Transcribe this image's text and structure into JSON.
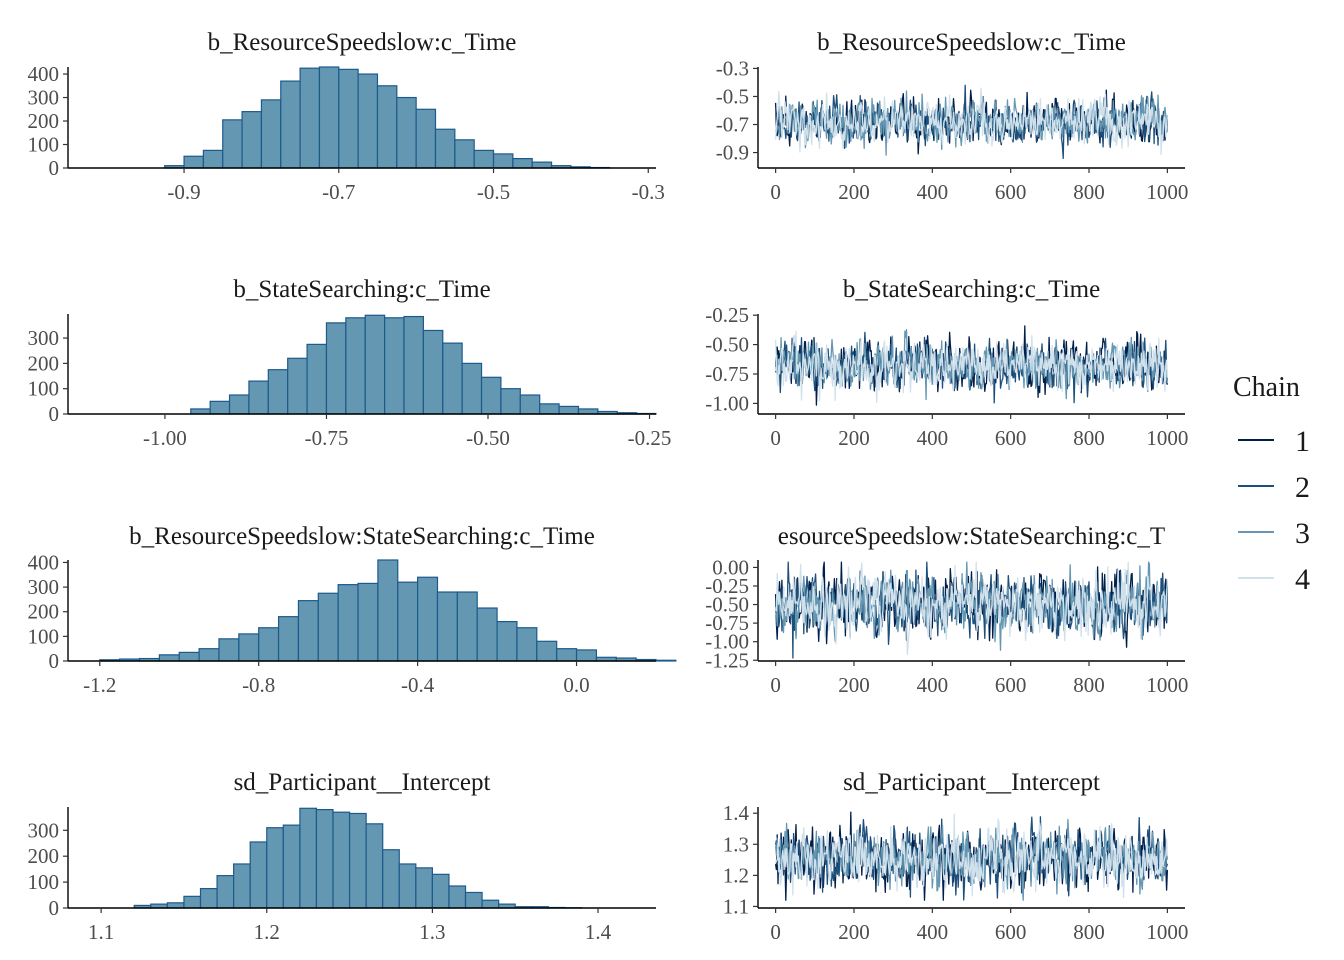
{
  "legend": {
    "title": "Chain",
    "chains": [
      {
        "label": "1",
        "color": "#011f4b"
      },
      {
        "label": "2",
        "color": "#1d4f7a"
      },
      {
        "label": "3",
        "color": "#6497b1"
      },
      {
        "label": "4",
        "color": "#d1e1ec"
      }
    ]
  },
  "colors": {
    "hist_fill": "#6497b1",
    "hist_edge": "#1d5a8c"
  },
  "chart_data": [
    {
      "type": "bar",
      "kind": "histogram",
      "title": "b_ResourceSpeedslow:c_Time",
      "xlim": [
        -1.05,
        -0.29
      ],
      "ylim": [
        0,
        430
      ],
      "xticks": [
        -0.9,
        -0.7,
        -0.5,
        -0.3
      ],
      "xtick_labels": [
        "-0.9",
        "-0.7",
        "-0.5",
        "-0.3"
      ],
      "yticks": [
        0,
        100,
        200,
        300,
        400
      ],
      "ytick_labels": [
        "0",
        "100",
        "200",
        "300",
        "400"
      ],
      "bin_start": -0.925,
      "bin_width": 0.025,
      "counts": [
        10,
        50,
        75,
        205,
        240,
        290,
        370,
        425,
        430,
        420,
        400,
        350,
        300,
        250,
        165,
        120,
        75,
        60,
        40,
        25,
        10,
        5,
        2
      ]
    },
    {
      "type": "line",
      "kind": "trace",
      "title": "b_ResourceSpeedslow:c_Time",
      "xlim": [
        -45,
        1045
      ],
      "ylim": [
        -1.01,
        -0.29
      ],
      "xticks": [
        0,
        200,
        400,
        600,
        800,
        1000
      ],
      "xtick_labels": [
        "0",
        "200",
        "400",
        "600",
        "800",
        "1000"
      ],
      "yticks": [
        -0.3,
        -0.5,
        -0.7,
        -0.9
      ],
      "ytick_labels": [
        "-0.3",
        "-0.5",
        "-0.7",
        "-0.9"
      ],
      "mean": -0.68,
      "sd": 0.075,
      "ymin": -0.99,
      "ymax": -0.33,
      "iterations": 1000,
      "series": [
        {
          "name": "1"
        },
        {
          "name": "2"
        },
        {
          "name": "3"
        },
        {
          "name": "4"
        }
      ]
    },
    {
      "type": "bar",
      "kind": "histogram",
      "title": "b_StateSearching:c_Time",
      "xlim": [
        -1.15,
        -0.24
      ],
      "ylim": [
        0,
        395
      ],
      "xticks": [
        -1.0,
        -0.75,
        -0.5,
        -0.25
      ],
      "xtick_labels": [
        "-1.00",
        "-0.75",
        "-0.50",
        "-0.25"
      ],
      "yticks": [
        0,
        100,
        200,
        300
      ],
      "ytick_labels": [
        "0",
        "100",
        "200",
        "300"
      ],
      "bin_start": -0.96,
      "bin_width": 0.03,
      "counts": [
        20,
        50,
        75,
        130,
        175,
        220,
        275,
        360,
        380,
        390,
        380,
        385,
        330,
        280,
        200,
        145,
        100,
        75,
        40,
        30,
        20,
        10,
        5,
        2
      ]
    },
    {
      "type": "line",
      "kind": "trace",
      "title": "b_StateSearching:c_Time",
      "xlim": [
        -45,
        1045
      ],
      "ylim": [
        -1.09,
        -0.24
      ],
      "xticks": [
        0,
        200,
        400,
        600,
        800,
        1000
      ],
      "xtick_labels": [
        "0",
        "200",
        "400",
        "600",
        "800",
        "1000"
      ],
      "yticks": [
        -0.25,
        -0.5,
        -0.75,
        -1.0
      ],
      "ytick_labels": [
        "-0.25",
        "-0.50",
        "-0.75",
        "-1.00"
      ],
      "mean": -0.68,
      "sd": 0.1,
      "ymin": -1.07,
      "ymax": -0.27,
      "iterations": 1000,
      "series": [
        {
          "name": "1"
        },
        {
          "name": "2"
        },
        {
          "name": "3"
        },
        {
          "name": "4"
        }
      ]
    },
    {
      "type": "bar",
      "kind": "histogram",
      "title": "b_ResourceSpeedslow:StateSearching:c_Time",
      "xlim": [
        -1.28,
        0.2
      ],
      "ylim": [
        0,
        410
      ],
      "xticks": [
        -1.2,
        -0.8,
        -0.4,
        0.0
      ],
      "xtick_labels": [
        "-1.2",
        "-0.8",
        "-0.4",
        "0.0"
      ],
      "yticks": [
        0,
        100,
        200,
        300,
        400
      ],
      "ytick_labels": [
        "0",
        "100",
        "200",
        "300",
        "400"
      ],
      "bin_start": -1.2,
      "bin_width": 0.05,
      "counts": [
        5,
        8,
        10,
        25,
        35,
        50,
        90,
        110,
        135,
        180,
        245,
        275,
        310,
        315,
        410,
        320,
        340,
        280,
        280,
        215,
        160,
        135,
        80,
        50,
        45,
        15,
        12,
        6,
        3
      ]
    },
    {
      "type": "line",
      "kind": "trace",
      "title": "b_ResourceSpeedslow:StateSearching:c_Time",
      "title_display": "esourceSpeedslow:StateSearching:c_T",
      "xlim": [
        -45,
        1045
      ],
      "ylim": [
        -1.26,
        0.1
      ],
      "xticks": [
        0,
        200,
        400,
        600,
        800,
        1000
      ],
      "xtick_labels": [
        "0",
        "200",
        "400",
        "600",
        "800",
        "1000"
      ],
      "yticks": [
        0.0,
        -0.25,
        -0.5,
        -0.75,
        -1.0,
        -1.25
      ],
      "ytick_labels": [
        "0.00",
        "-0.25",
        "-0.50",
        "-0.75",
        "-1.00",
        "-1.25"
      ],
      "mean": -0.5,
      "sd": 0.2,
      "ymin": -1.22,
      "ymax": 0.07,
      "iterations": 1000,
      "series": [
        {
          "name": "1"
        },
        {
          "name": "2"
        },
        {
          "name": "3"
        },
        {
          "name": "4"
        }
      ]
    },
    {
      "type": "bar",
      "kind": "histogram",
      "title": "sd_Participant__Intercept",
      "xlim": [
        1.08,
        1.435
      ],
      "ylim": [
        0,
        390
      ],
      "xticks": [
        1.1,
        1.2,
        1.3,
        1.4
      ],
      "xtick_labels": [
        "1.1",
        "1.2",
        "1.3",
        "1.4"
      ],
      "yticks": [
        0,
        100,
        200,
        300
      ],
      "ytick_labels": [
        "0",
        "100",
        "200",
        "300"
      ],
      "bin_start": 1.12,
      "bin_width": 0.01,
      "counts": [
        10,
        15,
        20,
        45,
        75,
        125,
        170,
        255,
        310,
        320,
        385,
        380,
        370,
        365,
        325,
        225,
        170,
        155,
        130,
        85,
        60,
        30,
        15,
        5,
        5,
        2,
        1
      ]
    },
    {
      "type": "line",
      "kind": "trace",
      "title": "sd_Participant__Intercept",
      "xlim": [
        -45,
        1045
      ],
      "ylim": [
        1.095,
        1.42
      ],
      "xticks": [
        0,
        200,
        400,
        600,
        800,
        1000
      ],
      "xtick_labels": [
        "0",
        "200",
        "400",
        "600",
        "800",
        "1000"
      ],
      "yticks": [
        1.4,
        1.3,
        1.2,
        1.1
      ],
      "ytick_labels": [
        "1.4",
        "1.3",
        "1.2",
        "1.1"
      ],
      "mean": 1.255,
      "sd": 0.045,
      "ymin": 1.12,
      "ymax": 1.41,
      "iterations": 1000,
      "series": [
        {
          "name": "1"
        },
        {
          "name": "2"
        },
        {
          "name": "3"
        },
        {
          "name": "4"
        }
      ]
    }
  ]
}
